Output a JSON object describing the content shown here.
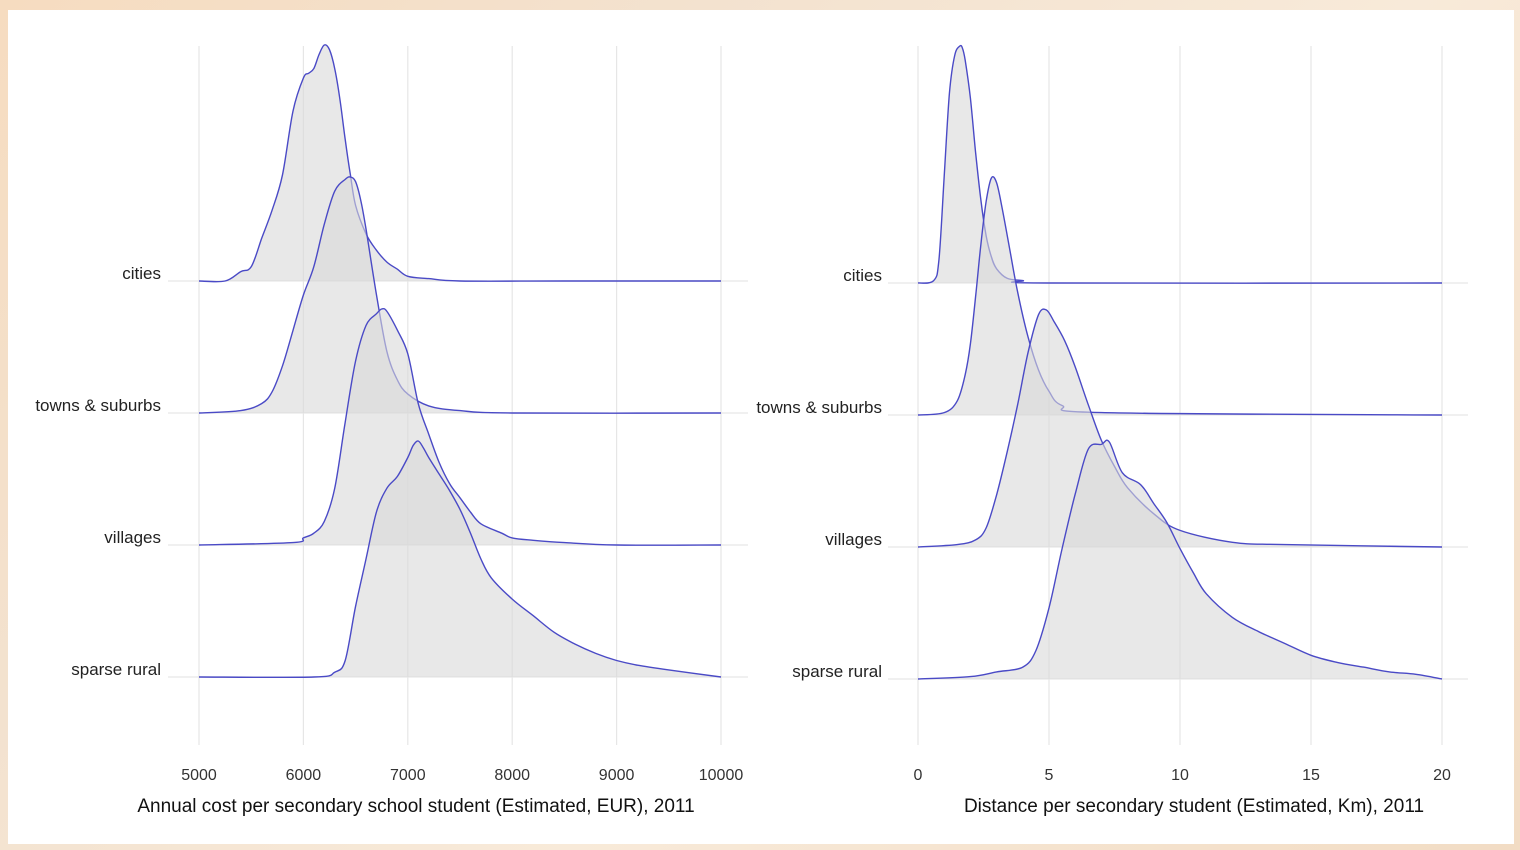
{
  "chart_data": [
    {
      "type": "ridgeline",
      "xlabel": "Annual cost per secondary school student (Estimated, EUR), 2011",
      "ylabel": "",
      "xlim": [
        5000,
        10000
      ],
      "x_ticks": [
        "5000",
        "6000",
        "7000",
        "8000",
        "9000",
        "10000"
      ],
      "tick_values": [
        5000,
        6000,
        7000,
        8000,
        9000,
        10000
      ],
      "grid": true,
      "fill_color": "#d9d9d9",
      "line_color": "#4a4ac6",
      "categories": [
        "cities",
        "towns & suburbs",
        "villages",
        "sparse rural"
      ],
      "series": [
        {
          "category": "cities",
          "x": [
            5000,
            5250,
            5400,
            5500,
            5600,
            5700,
            5800,
            5900,
            6000,
            6050,
            6100,
            6150,
            6200,
            6250,
            6300,
            6350,
            6400,
            6450,
            6500,
            6600,
            6700,
            6800,
            6900,
            7000,
            7200,
            7500,
            8500,
            10000
          ],
          "y": [
            0.0,
            0.0,
            0.04,
            0.06,
            0.18,
            0.3,
            0.45,
            0.72,
            0.86,
            0.88,
            0.9,
            0.96,
            1.0,
            0.98,
            0.9,
            0.77,
            0.6,
            0.45,
            0.32,
            0.2,
            0.13,
            0.08,
            0.05,
            0.02,
            0.01,
            0.0,
            0.0,
            0.0
          ]
        },
        {
          "category": "towns & suburbs",
          "x": [
            5000,
            5400,
            5600,
            5700,
            5800,
            5900,
            6000,
            6100,
            6200,
            6300,
            6400,
            6450,
            6500,
            6550,
            6600,
            6700,
            6800,
            6900,
            7000,
            7200,
            7500,
            8000,
            10000
          ],
          "y": [
            0.0,
            0.01,
            0.04,
            0.09,
            0.2,
            0.35,
            0.5,
            0.62,
            0.8,
            0.94,
            0.99,
            1.0,
            0.98,
            0.9,
            0.78,
            0.5,
            0.26,
            0.14,
            0.08,
            0.03,
            0.01,
            0.0,
            0.0
          ]
        },
        {
          "category": "villages",
          "x": [
            5000,
            5900,
            6000,
            6100,
            6200,
            6300,
            6400,
            6500,
            6600,
            6700,
            6750,
            6800,
            6900,
            7000,
            7100,
            7200,
            7300,
            7400,
            7500,
            7600,
            7700,
            7900,
            8000,
            8200,
            8500,
            9000,
            10000
          ],
          "y": [
            0.0,
            0.01,
            0.03,
            0.05,
            0.1,
            0.24,
            0.52,
            0.78,
            0.93,
            0.98,
            1.0,
            0.99,
            0.91,
            0.81,
            0.6,
            0.47,
            0.35,
            0.26,
            0.2,
            0.14,
            0.09,
            0.05,
            0.03,
            0.02,
            0.01,
            0.0,
            0.0
          ]
        },
        {
          "category": "sparse rural",
          "x": [
            5000,
            6100,
            6300,
            6400,
            6500,
            6600,
            6700,
            6800,
            6900,
            7000,
            7050,
            7100,
            7150,
            7200,
            7300,
            7400,
            7500,
            7600,
            7700,
            7800,
            8000,
            8200,
            8400,
            8600,
            8800,
            9000,
            9200,
            9500,
            10000
          ],
          "y": [
            0.0,
            0.0,
            0.02,
            0.07,
            0.3,
            0.5,
            0.7,
            0.8,
            0.85,
            0.93,
            0.98,
            1.0,
            0.97,
            0.93,
            0.86,
            0.79,
            0.71,
            0.61,
            0.5,
            0.42,
            0.33,
            0.26,
            0.19,
            0.14,
            0.1,
            0.07,
            0.05,
            0.03,
            0.0
          ]
        }
      ]
    },
    {
      "type": "ridgeline",
      "xlabel": "Distance per secondary student (Estimated, Km), 2011",
      "ylabel": "",
      "xlim": [
        0,
        20
      ],
      "x_ticks": [
        "0",
        "5",
        "10",
        "15",
        "20"
      ],
      "tick_values": [
        0,
        5,
        10,
        15,
        20
      ],
      "grid": true,
      "fill_color": "#d9d9d9",
      "line_color": "#4a4ac6",
      "categories": [
        "cities",
        "towns & suburbs",
        "villages",
        "sparse rural"
      ],
      "series": [
        {
          "category": "cities",
          "x": [
            0,
            0.6,
            0.8,
            1.0,
            1.2,
            1.4,
            1.6,
            1.7,
            1.8,
            2.0,
            2.2,
            2.4,
            2.6,
            2.8,
            3.0,
            3.4,
            4.0,
            5.0,
            20
          ],
          "y": [
            0.0,
            0.01,
            0.1,
            0.45,
            0.8,
            0.96,
            1.0,
            0.99,
            0.94,
            0.78,
            0.55,
            0.35,
            0.2,
            0.11,
            0.06,
            0.02,
            0.01,
            0.0,
            0.0
          ]
        },
        {
          "category": "towns & suburbs",
          "x": [
            0,
            1.0,
            1.5,
            1.8,
            2.0,
            2.2,
            2.4,
            2.6,
            2.8,
            3.0,
            3.2,
            3.5,
            3.8,
            4.2,
            4.6,
            5.0,
            5.5,
            7.0,
            20
          ],
          "y": [
            0.0,
            0.01,
            0.06,
            0.17,
            0.3,
            0.5,
            0.72,
            0.9,
            1.0,
            0.98,
            0.88,
            0.7,
            0.52,
            0.33,
            0.19,
            0.1,
            0.04,
            0.01,
            0.0
          ]
        },
        {
          "category": "villages",
          "x": [
            0,
            1.5,
            2.2,
            2.6,
            3.0,
            3.4,
            3.8,
            4.2,
            4.6,
            4.9,
            5.2,
            5.6,
            6.0,
            6.5,
            7.0,
            7.5,
            8.0,
            9.0,
            10.0,
            12.0,
            14.0,
            20
          ],
          "y": [
            0.0,
            0.01,
            0.03,
            0.08,
            0.22,
            0.4,
            0.6,
            0.82,
            0.98,
            1.0,
            0.95,
            0.87,
            0.76,
            0.6,
            0.45,
            0.34,
            0.25,
            0.14,
            0.07,
            0.02,
            0.01,
            0.0
          ]
        },
        {
          "category": "sparse rural",
          "x": [
            0,
            2.0,
            3.0,
            4.0,
            4.5,
            5.0,
            5.5,
            6.0,
            6.5,
            7.0,
            7.3,
            7.8,
            8.5,
            9.0,
            9.5,
            10.0,
            10.5,
            11.0,
            12.0,
            13.0,
            14.0,
            15.0,
            16.0,
            17.0,
            18.0,
            19.0,
            20
          ],
          "y": [
            0.0,
            0.01,
            0.03,
            0.05,
            0.12,
            0.3,
            0.55,
            0.78,
            0.97,
            0.99,
            1.0,
            0.87,
            0.82,
            0.74,
            0.66,
            0.55,
            0.45,
            0.36,
            0.26,
            0.2,
            0.15,
            0.1,
            0.07,
            0.05,
            0.03,
            0.02,
            0.0
          ]
        }
      ]
    }
  ]
}
